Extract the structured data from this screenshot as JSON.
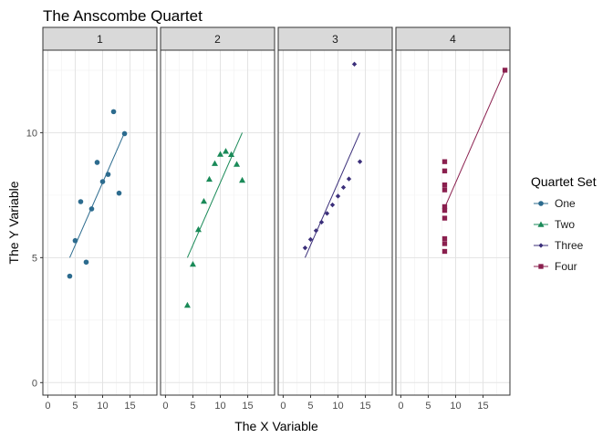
{
  "chart_data": {
    "type": "scatter",
    "title": "The Anscombe Quartet",
    "xlabel": "The X Variable",
    "ylabel": "The Y Variable",
    "xlim": [
      -0.9,
      19.9
    ],
    "ylim": [
      -0.5,
      13.3
    ],
    "x_ticks": [
      0,
      5,
      10,
      15
    ],
    "y_ticks": [
      0,
      5,
      10
    ],
    "grid": true,
    "legend": {
      "title": "Quartet Set",
      "position": "right"
    },
    "series": [
      {
        "name": "One",
        "panel": "1",
        "color": "#2c6b8e",
        "marker": "circle",
        "x": [
          10,
          8,
          13,
          9,
          11,
          14,
          6,
          4,
          12,
          7,
          5
        ],
        "y": [
          8.04,
          6.95,
          7.58,
          8.81,
          8.33,
          9.96,
          7.24,
          4.26,
          10.84,
          4.82,
          5.68
        ],
        "fit": [
          [
            4,
            5.0
          ],
          [
            14,
            10.0
          ]
        ]
      },
      {
        "name": "Two",
        "panel": "2",
        "color": "#1a8a58",
        "marker": "triangle",
        "x": [
          10,
          8,
          13,
          9,
          11,
          14,
          6,
          4,
          12,
          7,
          5
        ],
        "y": [
          9.14,
          8.14,
          8.74,
          8.77,
          9.26,
          8.1,
          6.13,
          3.1,
          9.13,
          7.26,
          4.74
        ],
        "fit": [
          [
            4,
            5.0
          ],
          [
            14,
            10.0
          ]
        ]
      },
      {
        "name": "Three",
        "panel": "3",
        "color": "#3b2f7a",
        "marker": "diamond",
        "x": [
          10,
          8,
          13,
          9,
          11,
          14,
          6,
          4,
          12,
          7,
          5
        ],
        "y": [
          7.46,
          6.77,
          12.74,
          7.11,
          7.81,
          8.84,
          6.08,
          5.39,
          8.15,
          6.42,
          5.73
        ],
        "fit": [
          [
            4,
            5.0
          ],
          [
            14,
            10.0
          ]
        ]
      },
      {
        "name": "Four",
        "panel": "4",
        "color": "#8a1f4e",
        "marker": "square",
        "x": [
          8,
          8,
          8,
          8,
          8,
          8,
          8,
          19,
          8,
          8,
          8
        ],
        "y": [
          6.58,
          5.76,
          7.71,
          8.84,
          8.47,
          7.04,
          5.25,
          12.5,
          5.56,
          7.91,
          6.89
        ],
        "fit": [
          [
            8,
            7.0
          ],
          [
            19,
            12.5
          ]
        ]
      }
    ]
  }
}
